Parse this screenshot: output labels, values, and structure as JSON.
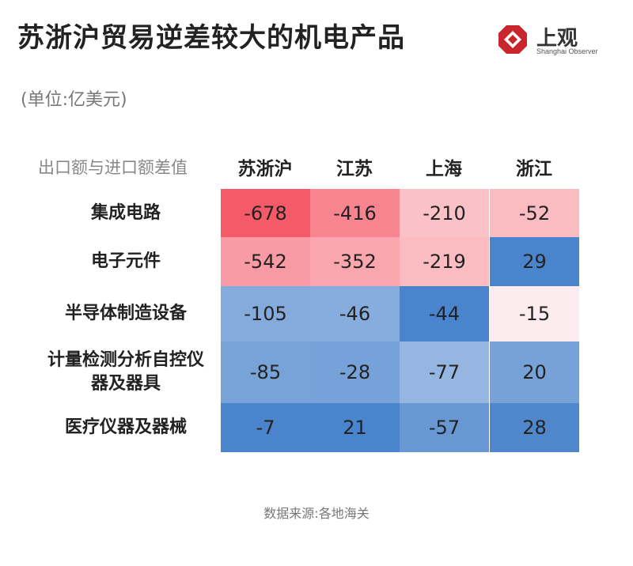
{
  "title": "苏浙沪贸易逆差较大的机电产品",
  "unit": "(单位:亿美元)",
  "logo": {
    "text": "上观",
    "sub": "Shanghai Observer",
    "icon": "shanghai-observer-logo-icon",
    "color": "#c8262c"
  },
  "source": "数据来源:各地海关",
  "chart_data": {
    "type": "heatmap",
    "title": "苏浙沪贸易逆差较大的机电产品",
    "corner_label": "出口额与进口额差值",
    "columns": [
      "苏浙沪",
      "江苏",
      "上海",
      "浙江"
    ],
    "rows": [
      "集成电路",
      "电子元件",
      "半导体制造设备",
      "计量检测分析自控仪器及器具",
      "医疗仪器及器械"
    ],
    "row_lines": [
      [
        "集成电路"
      ],
      [
        "电子元件"
      ],
      [
        "半导体制造设备"
      ],
      [
        "计量检测分析自控仪",
        "器及器具"
      ],
      [
        "医疗仪器及器械"
      ]
    ],
    "values": [
      [
        -678,
        -416,
        -210,
        -52
      ],
      [
        -542,
        -352,
        -219,
        29
      ],
      [
        -105,
        -46,
        -44,
        -15
      ],
      [
        -85,
        -28,
        -77,
        20
      ],
      [
        -7,
        21,
        -57,
        28
      ]
    ],
    "value_labels": [
      [
        "-678",
        "-416",
        "-210",
        "-52"
      ],
      [
        "-542",
        "-352",
        "-219",
        "29"
      ],
      [
        "-105",
        "-46",
        "-44",
        "-15"
      ],
      [
        "-85",
        "-28",
        "-77",
        "20"
      ],
      [
        "-7",
        "21",
        "-57",
        "28"
      ]
    ],
    "colors": {
      "negative_strong": "#f45a67",
      "neutral": "#fdf0f2",
      "positive_strong": "#4a84cc"
    }
  }
}
